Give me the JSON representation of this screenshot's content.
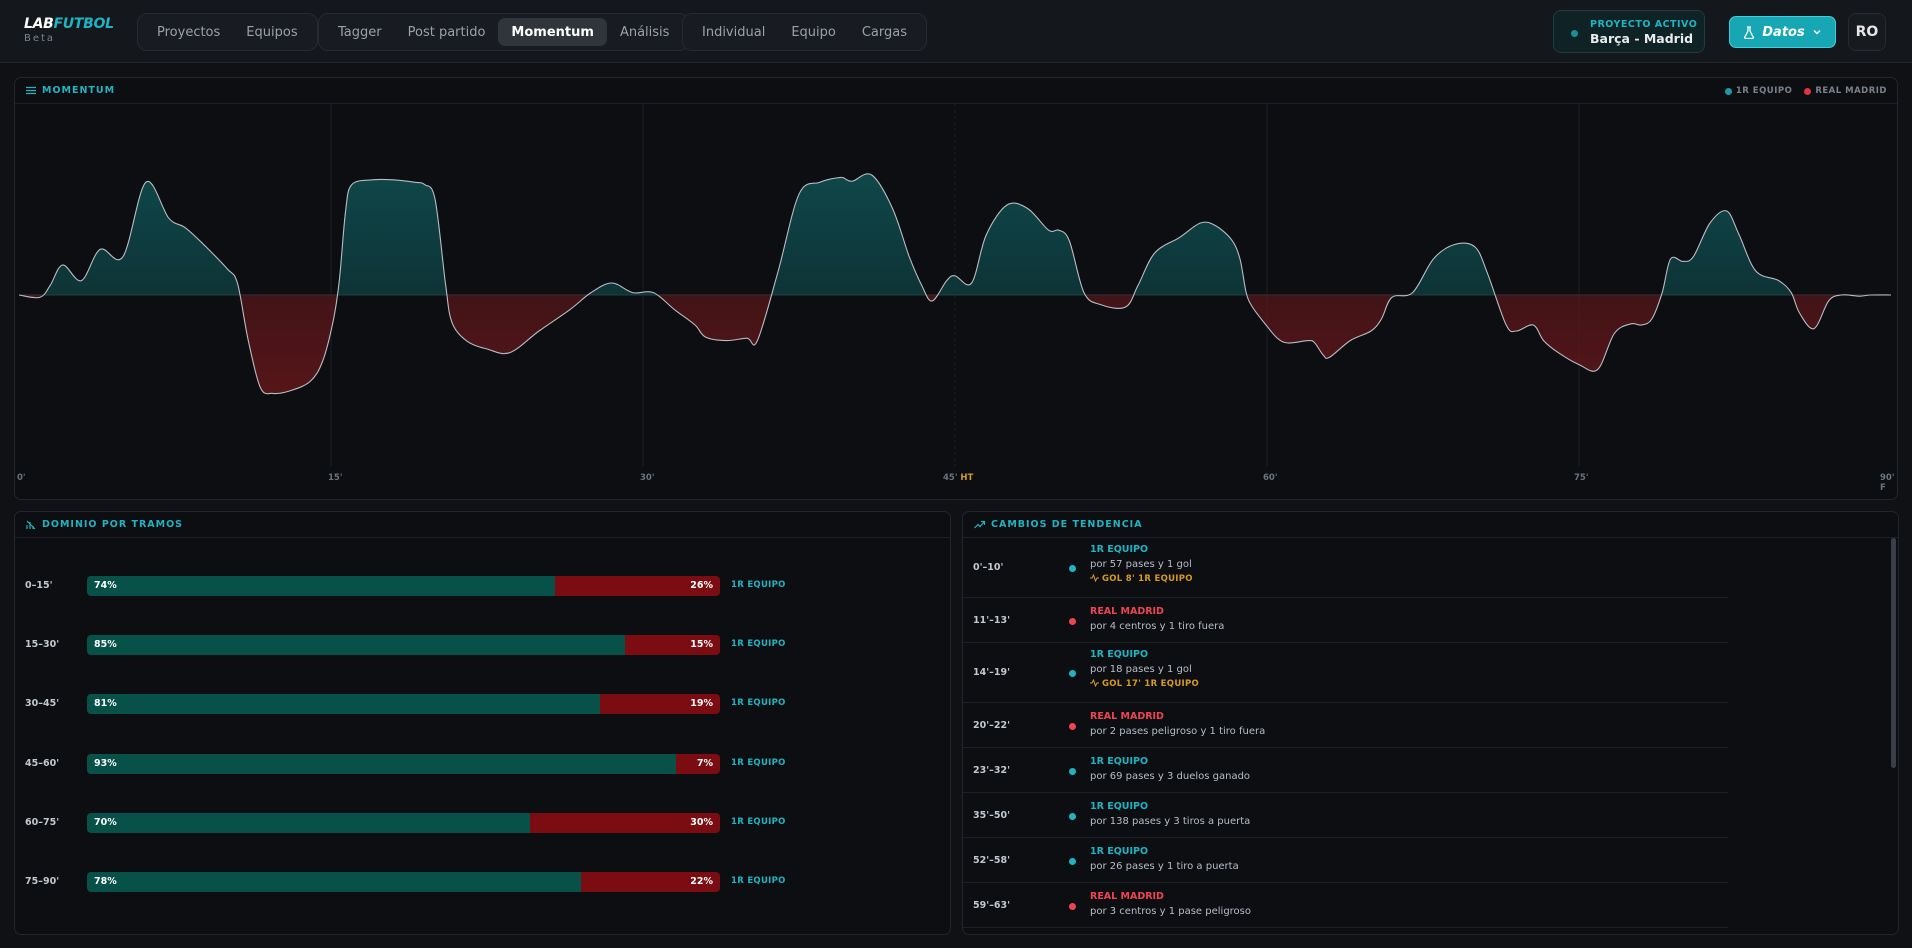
{
  "header": {
    "logo_lab": "LAB",
    "logo_futbol": "FUTBOL",
    "logo_sub": "Beta",
    "nav_groups": [
      [
        "Proyectos",
        "Equipos"
      ],
      [
        "Tagger",
        "Post partido",
        "Momentum",
        "Análisis"
      ],
      [
        "Individual",
        "Equipo",
        "Cargas"
      ]
    ],
    "active_tab": "Momentum",
    "project_label": "PROYECTO ACTIVO",
    "project_name": "Barça - Madrid",
    "datos_label": "Datos",
    "avatar": "RO"
  },
  "momentum": {
    "title": "MOMENTUM",
    "legend": [
      {
        "name": "1R EQUIPO",
        "color": "#1a9aa6"
      },
      {
        "name": "REAL MADRID",
        "color": "#e0333f"
      }
    ],
    "minute_labels": [
      "0'",
      "15'",
      "30'",
      "45'",
      "60'",
      "75'",
      "90'"
    ],
    "ht_label": "HT",
    "ft_label": "F",
    "colors": {
      "home_fill": "#0f4a4c",
      "away_fill": "#5a1619",
      "line": "#b9bcc2"
    }
  },
  "chart_data": {
    "type": "area",
    "title": "MOMENTUM",
    "xlabel": "",
    "ylabel": "",
    "x_range": [
      0,
      90
    ],
    "y_range": [
      -1,
      1
    ],
    "series": [
      {
        "name": "1R EQUIPO",
        "color": "#1a9aa6"
      },
      {
        "name": "REAL MADRID",
        "color": "#e0333f"
      }
    ],
    "points": [
      [
        0,
        0
      ],
      [
        1,
        -0.02
      ],
      [
        1.5,
        0.08
      ],
      [
        2.1,
        0.25
      ],
      [
        3,
        0.12
      ],
      [
        3.9,
        0.38
      ],
      [
        5,
        0.32
      ],
      [
        6.1,
        0.94
      ],
      [
        7.2,
        0.64
      ],
      [
        8,
        0.56
      ],
      [
        9,
        0.4
      ],
      [
        10,
        0.22
      ],
      [
        10.5,
        0.1
      ],
      [
        11,
        -0.36
      ],
      [
        11.6,
        -0.77
      ],
      [
        12.2,
        -0.82
      ],
      [
        13,
        -0.8
      ],
      [
        14,
        -0.72
      ],
      [
        14.6,
        -0.55
      ],
      [
        15.1,
        -0.22
      ],
      [
        15.4,
        0.12
      ],
      [
        15.7,
        0.7
      ],
      [
        16,
        0.92
      ],
      [
        17,
        0.96
      ],
      [
        18,
        0.96
      ],
      [
        19,
        0.94
      ],
      [
        19.5,
        0.92
      ],
      [
        20,
        0.8
      ],
      [
        20.5,
        0.1
      ],
      [
        20.8,
        -0.22
      ],
      [
        21.5,
        -0.38
      ],
      [
        22.5,
        -0.45
      ],
      [
        23.6,
        -0.48
      ],
      [
        25,
        -0.3
      ],
      [
        26.5,
        -0.12
      ],
      [
        27.5,
        0.02
      ],
      [
        28.5,
        0.1
      ],
      [
        29.5,
        0.02
      ],
      [
        30.5,
        0.02
      ],
      [
        31.5,
        -0.12
      ],
      [
        32.5,
        -0.25
      ],
      [
        33,
        -0.35
      ],
      [
        34,
        -0.38
      ],
      [
        35,
        -0.36
      ],
      [
        35.5,
        -0.38
      ],
      [
        36.5,
        0.2
      ],
      [
        37.5,
        0.84
      ],
      [
        38.5,
        0.94
      ],
      [
        39.5,
        0.98
      ],
      [
        39.8,
        0.96
      ],
      [
        40.1,
        0.95
      ],
      [
        41,
        1
      ],
      [
        42,
        0.72
      ],
      [
        42.8,
        0.32
      ],
      [
        43.4,
        0.08
      ],
      [
        43.9,
        -0.05
      ],
      [
        44.6,
        0.12
      ],
      [
        45,
        0.16
      ],
      [
        45.8,
        0.1
      ],
      [
        46.5,
        0.5
      ],
      [
        47.5,
        0.75
      ],
      [
        48.5,
        0.72
      ],
      [
        49.5,
        0.54
      ],
      [
        50,
        0.54
      ],
      [
        50.5,
        0.45
      ],
      [
        51.2,
        0.02
      ],
      [
        52,
        -0.08
      ],
      [
        53.2,
        -0.1
      ],
      [
        53.8,
        0.08
      ],
      [
        54.6,
        0.35
      ],
      [
        55.8,
        0.48
      ],
      [
        56.8,
        0.6
      ],
      [
        57.5,
        0.58
      ],
      [
        58.3,
        0.46
      ],
      [
        58.7,
        0.3
      ],
      [
        59,
        0.02
      ],
      [
        59.3,
        -0.1
      ],
      [
        60,
        -0.26
      ],
      [
        60.5,
        -0.36
      ],
      [
        61,
        -0.4
      ],
      [
        62,
        -0.38
      ],
      [
        62.3,
        -0.4
      ],
      [
        62.7,
        -0.5
      ],
      [
        63,
        -0.52
      ],
      [
        64,
        -0.38
      ],
      [
        65,
        -0.3
      ],
      [
        65.5,
        -0.2
      ],
      [
        66,
        -0.02
      ],
      [
        67,
        0.02
      ],
      [
        68,
        0.3
      ],
      [
        69,
        0.42
      ],
      [
        70,
        0.4
      ],
      [
        70.6,
        0.18
      ],
      [
        71.5,
        -0.25
      ],
      [
        72,
        -0.3
      ],
      [
        72.8,
        -0.25
      ],
      [
        73.3,
        -0.38
      ],
      [
        74,
        -0.48
      ],
      [
        75,
        -0.58
      ],
      [
        75.9,
        -0.62
      ],
      [
        76.7,
        -0.32
      ],
      [
        77.5,
        -0.24
      ],
      [
        78,
        -0.25
      ],
      [
        78.5,
        -0.2
      ],
      [
        79,
        0.02
      ],
      [
        79.4,
        0.3
      ],
      [
        80,
        0.28
      ],
      [
        80.5,
        0.32
      ],
      [
        81.3,
        0.6
      ],
      [
        82.1,
        0.7
      ],
      [
        82.7,
        0.5
      ],
      [
        83.5,
        0.2
      ],
      [
        84.6,
        0.12
      ],
      [
        85.2,
        0.02
      ],
      [
        85.6,
        -0.15
      ],
      [
        86.3,
        -0.28
      ],
      [
        87,
        -0.05
      ],
      [
        87.6,
        0
      ],
      [
        88.5,
        -0.01
      ],
      [
        89,
        0
      ],
      [
        90,
        0
      ]
    ],
    "annotations": [
      "HT"
    ]
  },
  "dominio": {
    "title": "DOMINIO POR TRAMOS",
    "rows": [
      {
        "label": "0–15'",
        "home": 74,
        "away": 26,
        "home_text": "74%",
        "away_text": "26%",
        "winner": "1R EQUIPO"
      },
      {
        "label": "15–30'",
        "home": 85,
        "away": 15,
        "home_text": "85%",
        "away_text": "15%",
        "winner": "1R EQUIPO"
      },
      {
        "label": "30–45'",
        "home": 81,
        "away": 19,
        "home_text": "81%",
        "away_text": "19%",
        "winner": "1R EQUIPO"
      },
      {
        "label": "45–60'",
        "home": 93,
        "away": 7,
        "home_text": "93%",
        "away_text": "7%",
        "winner": "1R EQUIPO"
      },
      {
        "label": "60–75'",
        "home": 70,
        "away": 30,
        "home_text": "70%",
        "away_text": "30%",
        "winner": "1R EQUIPO"
      },
      {
        "label": "75–90'",
        "home": 78,
        "away": 22,
        "home_text": "78%",
        "away_text": "22%",
        "winner": "1R EQUIPO"
      }
    ]
  },
  "cambios": {
    "title": "CAMBIOS DE TENDENCIA",
    "rows": [
      {
        "range": "0'–10'",
        "team": "1R EQUIPO",
        "side": "home",
        "detail": "por 57 pases y 1 gol",
        "goal": "GOL 8' 1R EQUIPO"
      },
      {
        "range": "11'–13'",
        "team": "REAL MADRID",
        "side": "away",
        "detail": "por 4 centros y 1 tiro fuera",
        "goal": ""
      },
      {
        "range": "14'–19'",
        "team": "1R EQUIPO",
        "side": "home",
        "detail": "por 18 pases y 1 gol",
        "goal": "GOL 17' 1R EQUIPO"
      },
      {
        "range": "20'–22'",
        "team": "REAL MADRID",
        "side": "away",
        "detail": "por 2 pases peligroso y 1 tiro fuera",
        "goal": ""
      },
      {
        "range": "23'–32'",
        "team": "1R EQUIPO",
        "side": "home",
        "detail": "por 69 pases y 3 duelos ganado",
        "goal": ""
      },
      {
        "range": "35'–50'",
        "team": "1R EQUIPO",
        "side": "home",
        "detail": "por 138 pases y 3 tiros a puerta",
        "goal": ""
      },
      {
        "range": "52'–58'",
        "team": "1R EQUIPO",
        "side": "home",
        "detail": "por 26 pases y 1 tiro a puerta",
        "goal": ""
      },
      {
        "range": "59'–63'",
        "team": "REAL MADRID",
        "side": "away",
        "detail": "por 3 centros y 1 pase peligroso",
        "goal": ""
      }
    ],
    "colors": {
      "home": "#1fb4c2",
      "away": "#ef4452"
    }
  }
}
